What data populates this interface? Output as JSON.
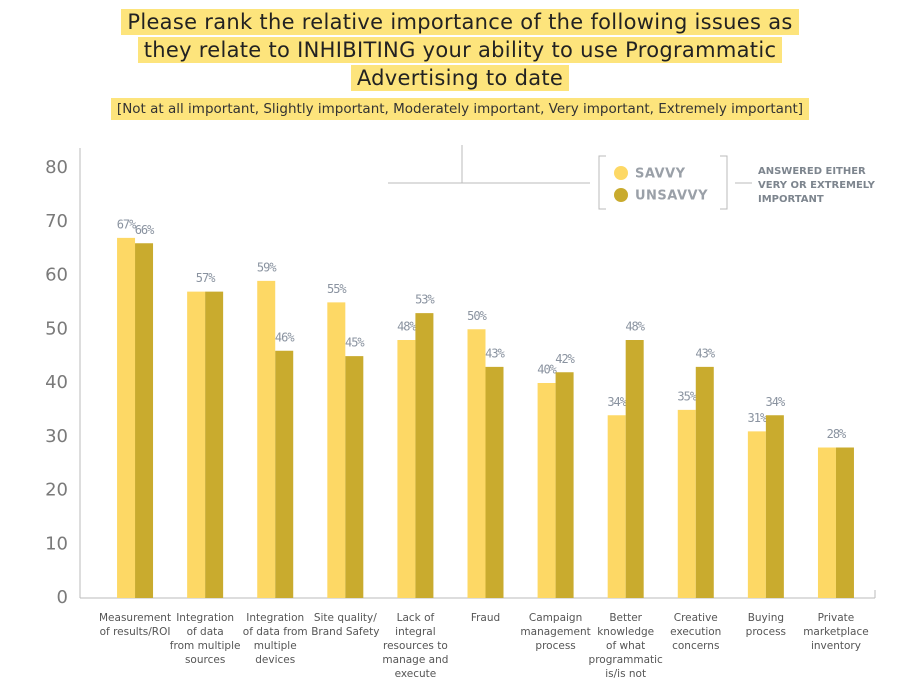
{
  "chart_data": {
    "type": "bar",
    "title": [
      "Please rank the relative importance of the following issues as",
      "they relate to INHIBITING your ability to use Programmatic",
      "Advertising to date"
    ],
    "subtitle": "[Not at all important, Slightly important, Moderately important, Very important, Extremely important]",
    "categories": [
      [
        "Measurement",
        "of results/ROI"
      ],
      [
        "Integration",
        "of data",
        "from multiple",
        "sources"
      ],
      [
        "Integration",
        "of data from",
        "multiple",
        "devices"
      ],
      [
        "Site quality/",
        "Brand Safety"
      ],
      [
        "Lack of",
        "integral",
        "resources to",
        "manage and",
        "execute"
      ],
      [
        "Fraud"
      ],
      [
        "Campaign",
        "management",
        "process"
      ],
      [
        "Better",
        "knowledge",
        "of what",
        "programmatic",
        "is/is not"
      ],
      [
        "Creative",
        "execution",
        "concerns"
      ],
      [
        "Buying",
        "process"
      ],
      [
        "Private",
        "marketplace",
        "inventory"
      ]
    ],
    "series": [
      {
        "name": "SAVVY",
        "color": "#fdd865",
        "values": [
          67,
          57,
          59,
          55,
          48,
          50,
          40,
          34,
          35,
          31,
          28
        ],
        "value_labels": [
          "67%",
          "57%",
          "59%",
          "55%",
          "48%",
          "50%",
          "40%",
          "34%",
          "35%",
          "31%",
          "28%"
        ]
      },
      {
        "name": "UNSAVVY",
        "color": "#c9ab2e",
        "values": [
          66,
          57,
          46,
          45,
          53,
          43,
          42,
          48,
          43,
          34,
          28
        ],
        "value_labels": [
          "66%",
          null,
          "46%",
          "45%",
          "53%",
          "43%",
          "42%",
          "48%",
          "43%",
          "34%",
          null
        ]
      }
    ],
    "annotation": [
      "ANSWERED EITHER",
      "VERY OR EXTREMELY",
      "IMPORTANT"
    ],
    "ylim": [
      0,
      80
    ],
    "yticks": [
      0,
      10,
      20,
      30,
      40,
      50,
      60,
      70,
      80
    ],
    "grid": false
  }
}
